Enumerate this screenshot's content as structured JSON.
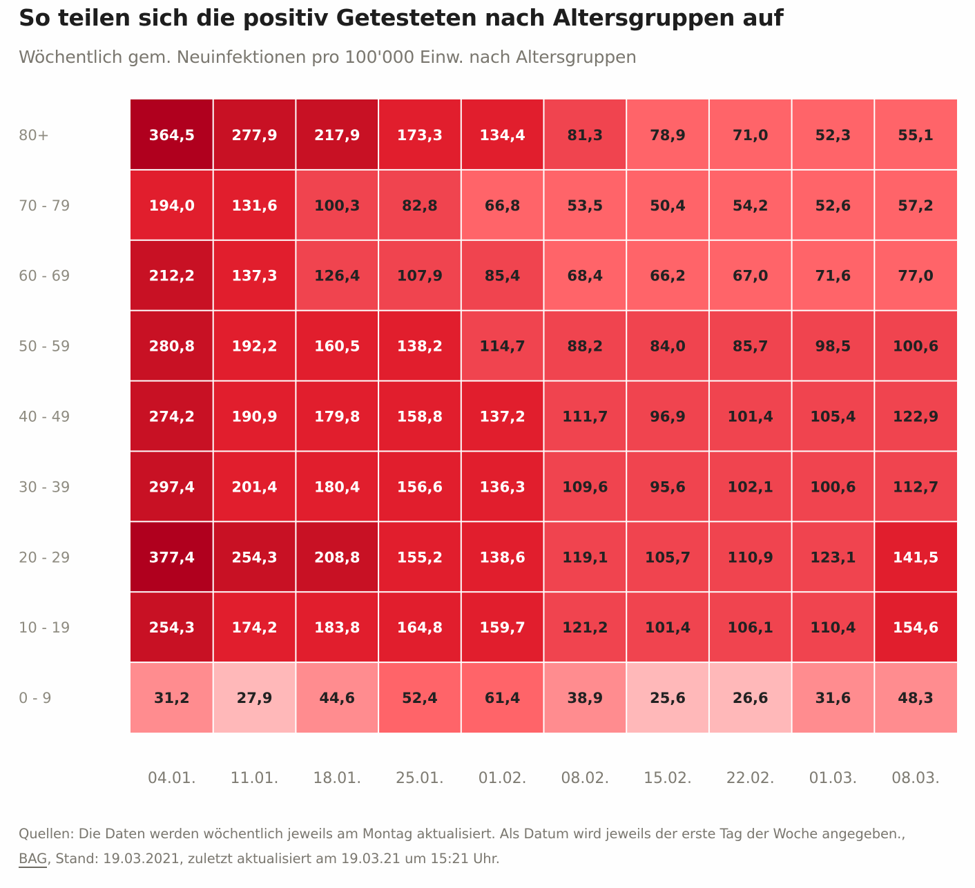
{
  "header": {
    "title": "So teilen sich die positiv Getesteten nach Altersgruppen auf",
    "subtitle": "Wöchentlich gem. Neuinfektionen pro 100'000 Einw. nach Altersgruppen"
  },
  "chart_data": {
    "type": "heatmap",
    "title": "So teilen sich die positiv Getesteten nach Altersgruppen auf",
    "subtitle": "Wöchentlich gem. Neuinfektionen pro 100'000 Einw. nach Altersgruppen",
    "xlabel": "",
    "ylabel": "",
    "x": [
      "04.01.",
      "11.01.",
      "18.01.",
      "25.01.",
      "01.02.",
      "08.02.",
      "15.02.",
      "22.02.",
      "01.03.",
      "08.03."
    ],
    "y": [
      "80+",
      "70 - 79",
      "60 - 69",
      "50 - 59",
      "40 - 49",
      "30 - 39",
      "20 - 29",
      "10 - 19",
      "0 - 9"
    ],
    "values": [
      [
        364.5,
        277.9,
        217.9,
        173.3,
        134.4,
        81.3,
        78.9,
        71.0,
        52.3,
        55.1
      ],
      [
        194.0,
        131.6,
        100.3,
        82.8,
        66.8,
        53.5,
        50.4,
        54.2,
        52.6,
        57.2
      ],
      [
        212.2,
        137.3,
        126.4,
        107.9,
        85.4,
        68.4,
        66.2,
        67.0,
        71.6,
        77.0
      ],
      [
        280.8,
        192.2,
        160.5,
        138.2,
        114.7,
        88.2,
        84.0,
        85.7,
        98.5,
        100.6
      ],
      [
        274.2,
        190.9,
        179.8,
        158.8,
        137.2,
        111.7,
        96.9,
        101.4,
        105.4,
        122.9
      ],
      [
        297.4,
        201.4,
        180.4,
        156.6,
        136.3,
        109.6,
        95.6,
        102.1,
        100.6,
        112.7
      ],
      [
        377.4,
        254.3,
        208.8,
        155.2,
        138.6,
        119.1,
        105.7,
        110.9,
        123.1,
        141.5
      ],
      [
        254.3,
        174.2,
        183.8,
        164.8,
        159.7,
        121.2,
        101.4,
        106.1,
        110.4,
        154.6
      ],
      [
        31.2,
        27.9,
        44.6,
        52.4,
        61.4,
        38.9,
        25.6,
        26.6,
        31.6,
        48.3
      ]
    ],
    "decimal_separator": ",",
    "color_scale": [
      {
        "min": 350,
        "color": "#b0001e",
        "text": "#ffffff"
      },
      {
        "min": 205,
        "color": "#c81124",
        "text": "#ffffff"
      },
      {
        "min": 130,
        "color": "#e11e2d",
        "text": "#ffffff"
      },
      {
        "min": 80,
        "color": "#f0444f",
        "text": "#222222"
      },
      {
        "min": 50,
        "color": "#ff6469",
        "text": "#222222"
      },
      {
        "min": 30,
        "color": "#ff8c8f",
        "text": "#222222"
      },
      {
        "min": 0,
        "color": "#ffb8b9",
        "text": "#222222"
      }
    ],
    "legend": "none",
    "grid": false
  },
  "footer": {
    "source_prefix": "Quellen: Die Daten werden wöchentlich jeweils am Montag aktualisiert. Als Datum wird jeweils der erste Tag der Woche angegeben., ",
    "source_link": "BAG",
    "source_suffix": ", Stand: 19.03.2021, zuletzt aktualisiert am 19.03.21 um 15:21 Uhr."
  }
}
